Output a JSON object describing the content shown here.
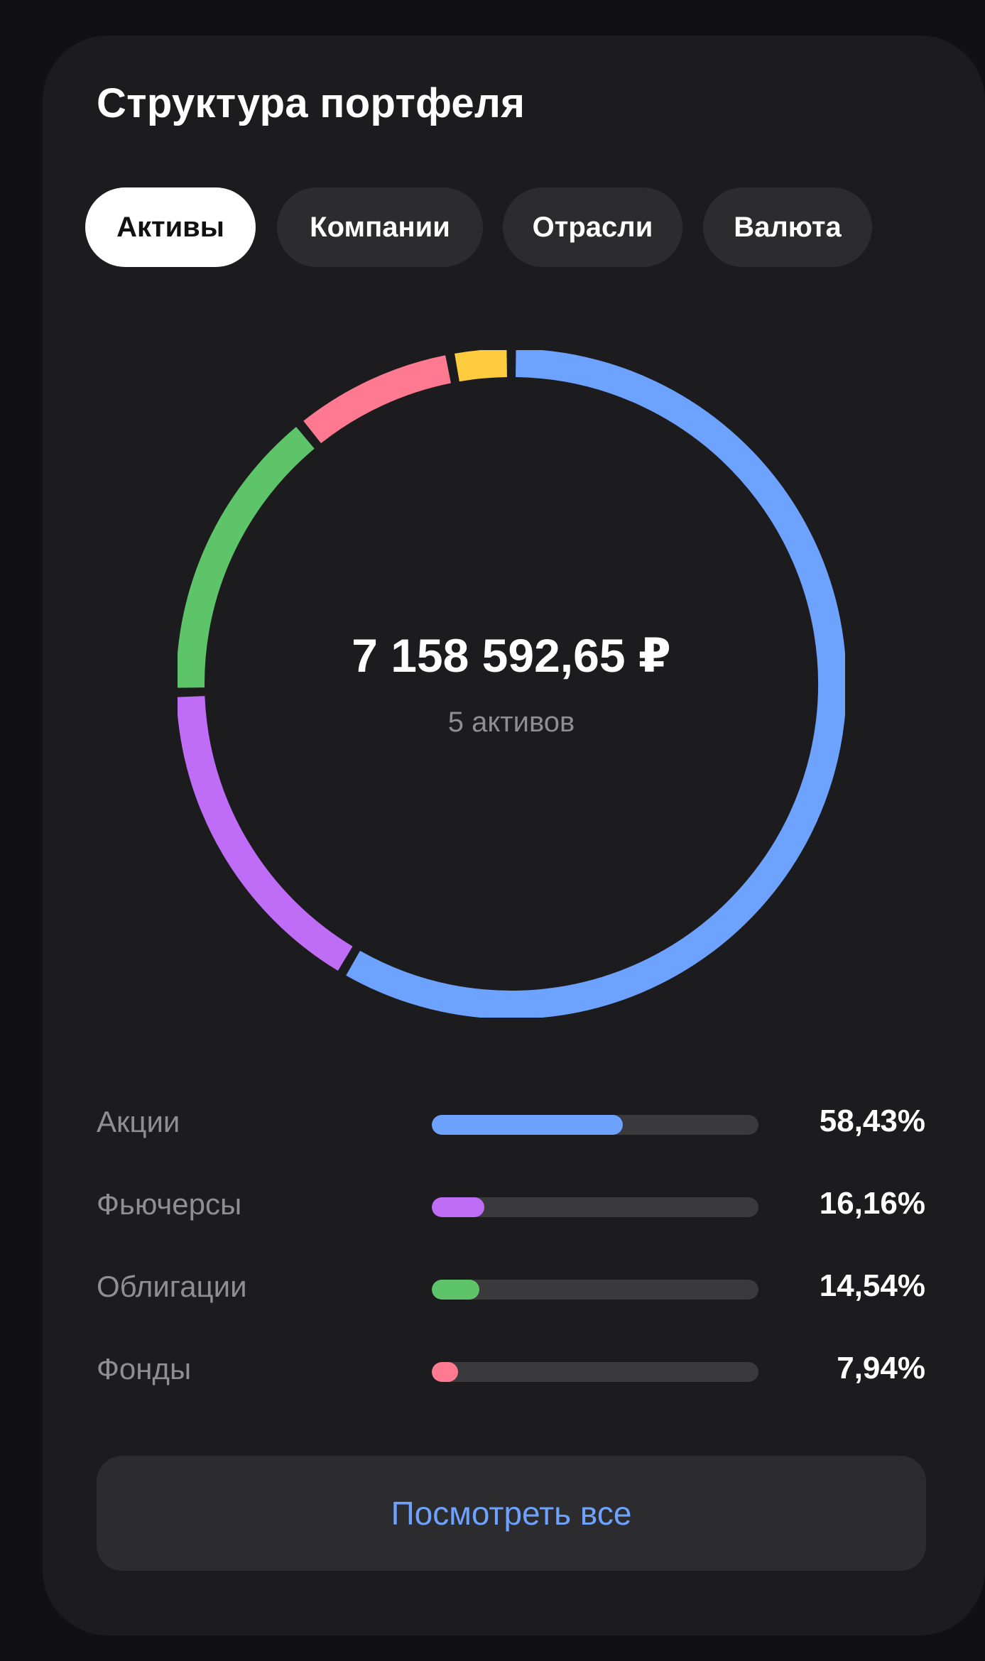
{
  "card": {
    "title": "Структура портфеля"
  },
  "tabs": [
    {
      "label": "Активы",
      "active": true
    },
    {
      "label": "Компании",
      "active": false
    },
    {
      "label": "Отрасли",
      "active": false
    },
    {
      "label": "Валюта",
      "active": false
    }
  ],
  "summary": {
    "total": "7 158 592,65 ₽",
    "count": "5 активов"
  },
  "chart_data": {
    "type": "pie",
    "categories": [
      "Акции",
      "Фьючерсы",
      "Облигации",
      "Фонды",
      ""
    ],
    "values": [
      58.43,
      16.16,
      14.54,
      7.94,
      2.93
    ],
    "colors": [
      "#6ea2ff",
      "#bf6cf7",
      "#5ec46a",
      "#ff7a91",
      "#ffcc3f"
    ]
  },
  "legend": [
    {
      "label": "Акции",
      "percent": "58,43%",
      "value": 58.43,
      "color": "#6ea2ff"
    },
    {
      "label": "Фьючерсы",
      "percent": "16,16%",
      "value": 16.16,
      "color": "#bf6cf7"
    },
    {
      "label": "Облигации",
      "percent": "14,54%",
      "value": 14.54,
      "color": "#5ec46a"
    },
    {
      "label": "Фонды",
      "percent": "7,94%",
      "value": 7.94,
      "color": "#ff7a91"
    }
  ],
  "actions": {
    "view_all": "Посмотреть все"
  }
}
